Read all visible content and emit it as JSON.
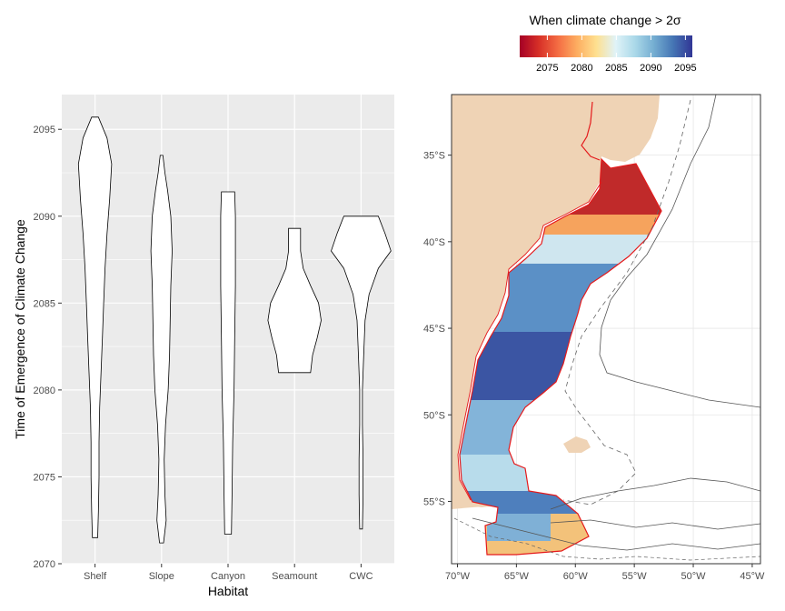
{
  "chart_data": [
    {
      "type": "violin",
      "title": "",
      "xlabel": "Habitat",
      "ylabel": "Time of Emergence of Climate Change",
      "ylim": [
        2070,
        2097
      ],
      "yticks": [
        2070,
        2075,
        2080,
        2085,
        2090,
        2095
      ],
      "categories": [
        "Shelf",
        "Slope",
        "Canyon",
        "Seamount",
        "CWC"
      ],
      "grid": true,
      "series": [
        {
          "category": "Shelf",
          "min": 2071.5,
          "max": 2095.7,
          "density": [
            [
              2071.5,
              0.4
            ],
            [
              2073,
              0.5
            ],
            [
              2075,
              0.6
            ],
            [
              2077,
              0.6
            ],
            [
              2079,
              0.7
            ],
            [
              2081,
              0.9
            ],
            [
              2083,
              1.1
            ],
            [
              2085,
              1.3
            ],
            [
              2087,
              1.5
            ],
            [
              2089,
              1.8
            ],
            [
              2091,
              2.2
            ],
            [
              2093,
              2.5
            ],
            [
              2094.5,
              1.8
            ],
            [
              2095.7,
              0.5
            ]
          ]
        },
        {
          "category": "Slope",
          "min": 2071.2,
          "max": 2093.5,
          "density": [
            [
              2071.2,
              0.3
            ],
            [
              2072.5,
              0.7
            ],
            [
              2074,
              0.5
            ],
            [
              2076,
              0.4
            ],
            [
              2078,
              0.6
            ],
            [
              2080,
              1.0
            ],
            [
              2082,
              1.2
            ],
            [
              2084,
              1.3
            ],
            [
              2086,
              1.4
            ],
            [
              2088,
              1.6
            ],
            [
              2090,
              1.4
            ],
            [
              2091.5,
              0.9
            ],
            [
              2092.5,
              0.5
            ],
            [
              2093.5,
              0.2
            ]
          ]
        },
        {
          "category": "Canyon",
          "min": 2071.7,
          "max": 2091.4,
          "density": [
            [
              2071.7,
              0.5
            ],
            [
              2074,
              0.6
            ],
            [
              2077,
              0.7
            ],
            [
              2080,
              0.9
            ],
            [
              2083,
              1.0
            ],
            [
              2086,
              1.1
            ],
            [
              2088,
              1.1
            ],
            [
              2090,
              1.1
            ],
            [
              2091.4,
              1.0
            ]
          ]
        },
        {
          "category": "Seamount",
          "min": 2081.0,
          "max": 2089.3,
          "density": [
            [
              2081.0,
              2.4
            ],
            [
              2082,
              2.7
            ],
            [
              2083,
              3.4
            ],
            [
              2084,
              4.0
            ],
            [
              2085,
              3.6
            ],
            [
              2086,
              2.4
            ],
            [
              2087,
              1.3
            ],
            [
              2088,
              0.9
            ],
            [
              2089.3,
              0.9
            ]
          ]
        },
        {
          "category": "CWC",
          "min": 2072.0,
          "max": 2090.0,
          "density": [
            [
              2072.0,
              0.2
            ],
            [
              2074,
              0.3
            ],
            [
              2076,
              0.3
            ],
            [
              2078,
              0.2
            ],
            [
              2080,
              0.2
            ],
            [
              2082,
              0.4
            ],
            [
              2084,
              0.6
            ],
            [
              2085.5,
              1.2
            ],
            [
              2087,
              2.6
            ],
            [
              2088,
              4.5
            ],
            [
              2089,
              3.6
            ],
            [
              2090.0,
              2.6
            ]
          ]
        }
      ]
    },
    {
      "type": "heatmap",
      "title": "When climate change > 2σ",
      "colorbar_ticks": [
        2075,
        2080,
        2085,
        2090,
        2095
      ],
      "colorbar_range": [
        2071,
        2096
      ],
      "colors": [
        "#a50026",
        "#d73027",
        "#f46d43",
        "#fdae61",
        "#fee090",
        "#e0f3f8",
        "#abd9e9",
        "#74add1",
        "#4575b4",
        "#313695"
      ],
      "x_ticks": [
        "70°W",
        "65°W",
        "60°W",
        "55°W",
        "50°W",
        "45°W"
      ],
      "x_tick_values": [
        -70,
        -65,
        -60,
        -55,
        -50,
        -45
      ],
      "y_ticks": [
        "35°S",
        "40°S",
        "45°S",
        "50°S",
        "55°S"
      ],
      "y_tick_values": [
        -35,
        -40,
        -45,
        -50,
        -55
      ],
      "xlim": [
        -70.5,
        -44.3
      ],
      "ylim": [
        -58.6,
        -31.5
      ],
      "land_color": "#efd3b5",
      "boundary_color": "#e41a1c",
      "toe_regions": [
        {
          "lat": [
            -36,
            -42
          ],
          "toe": 2073
        },
        {
          "lat": [
            -40,
            -43
          ],
          "toe": 2083
        },
        {
          "lat": [
            -43,
            -50
          ],
          "toe": 2094
        },
        {
          "lat": [
            -50,
            -54
          ],
          "toe": 2087
        },
        {
          "lat": [
            -54,
            -58.5
          ],
          "toe": 2081
        }
      ]
    }
  ]
}
